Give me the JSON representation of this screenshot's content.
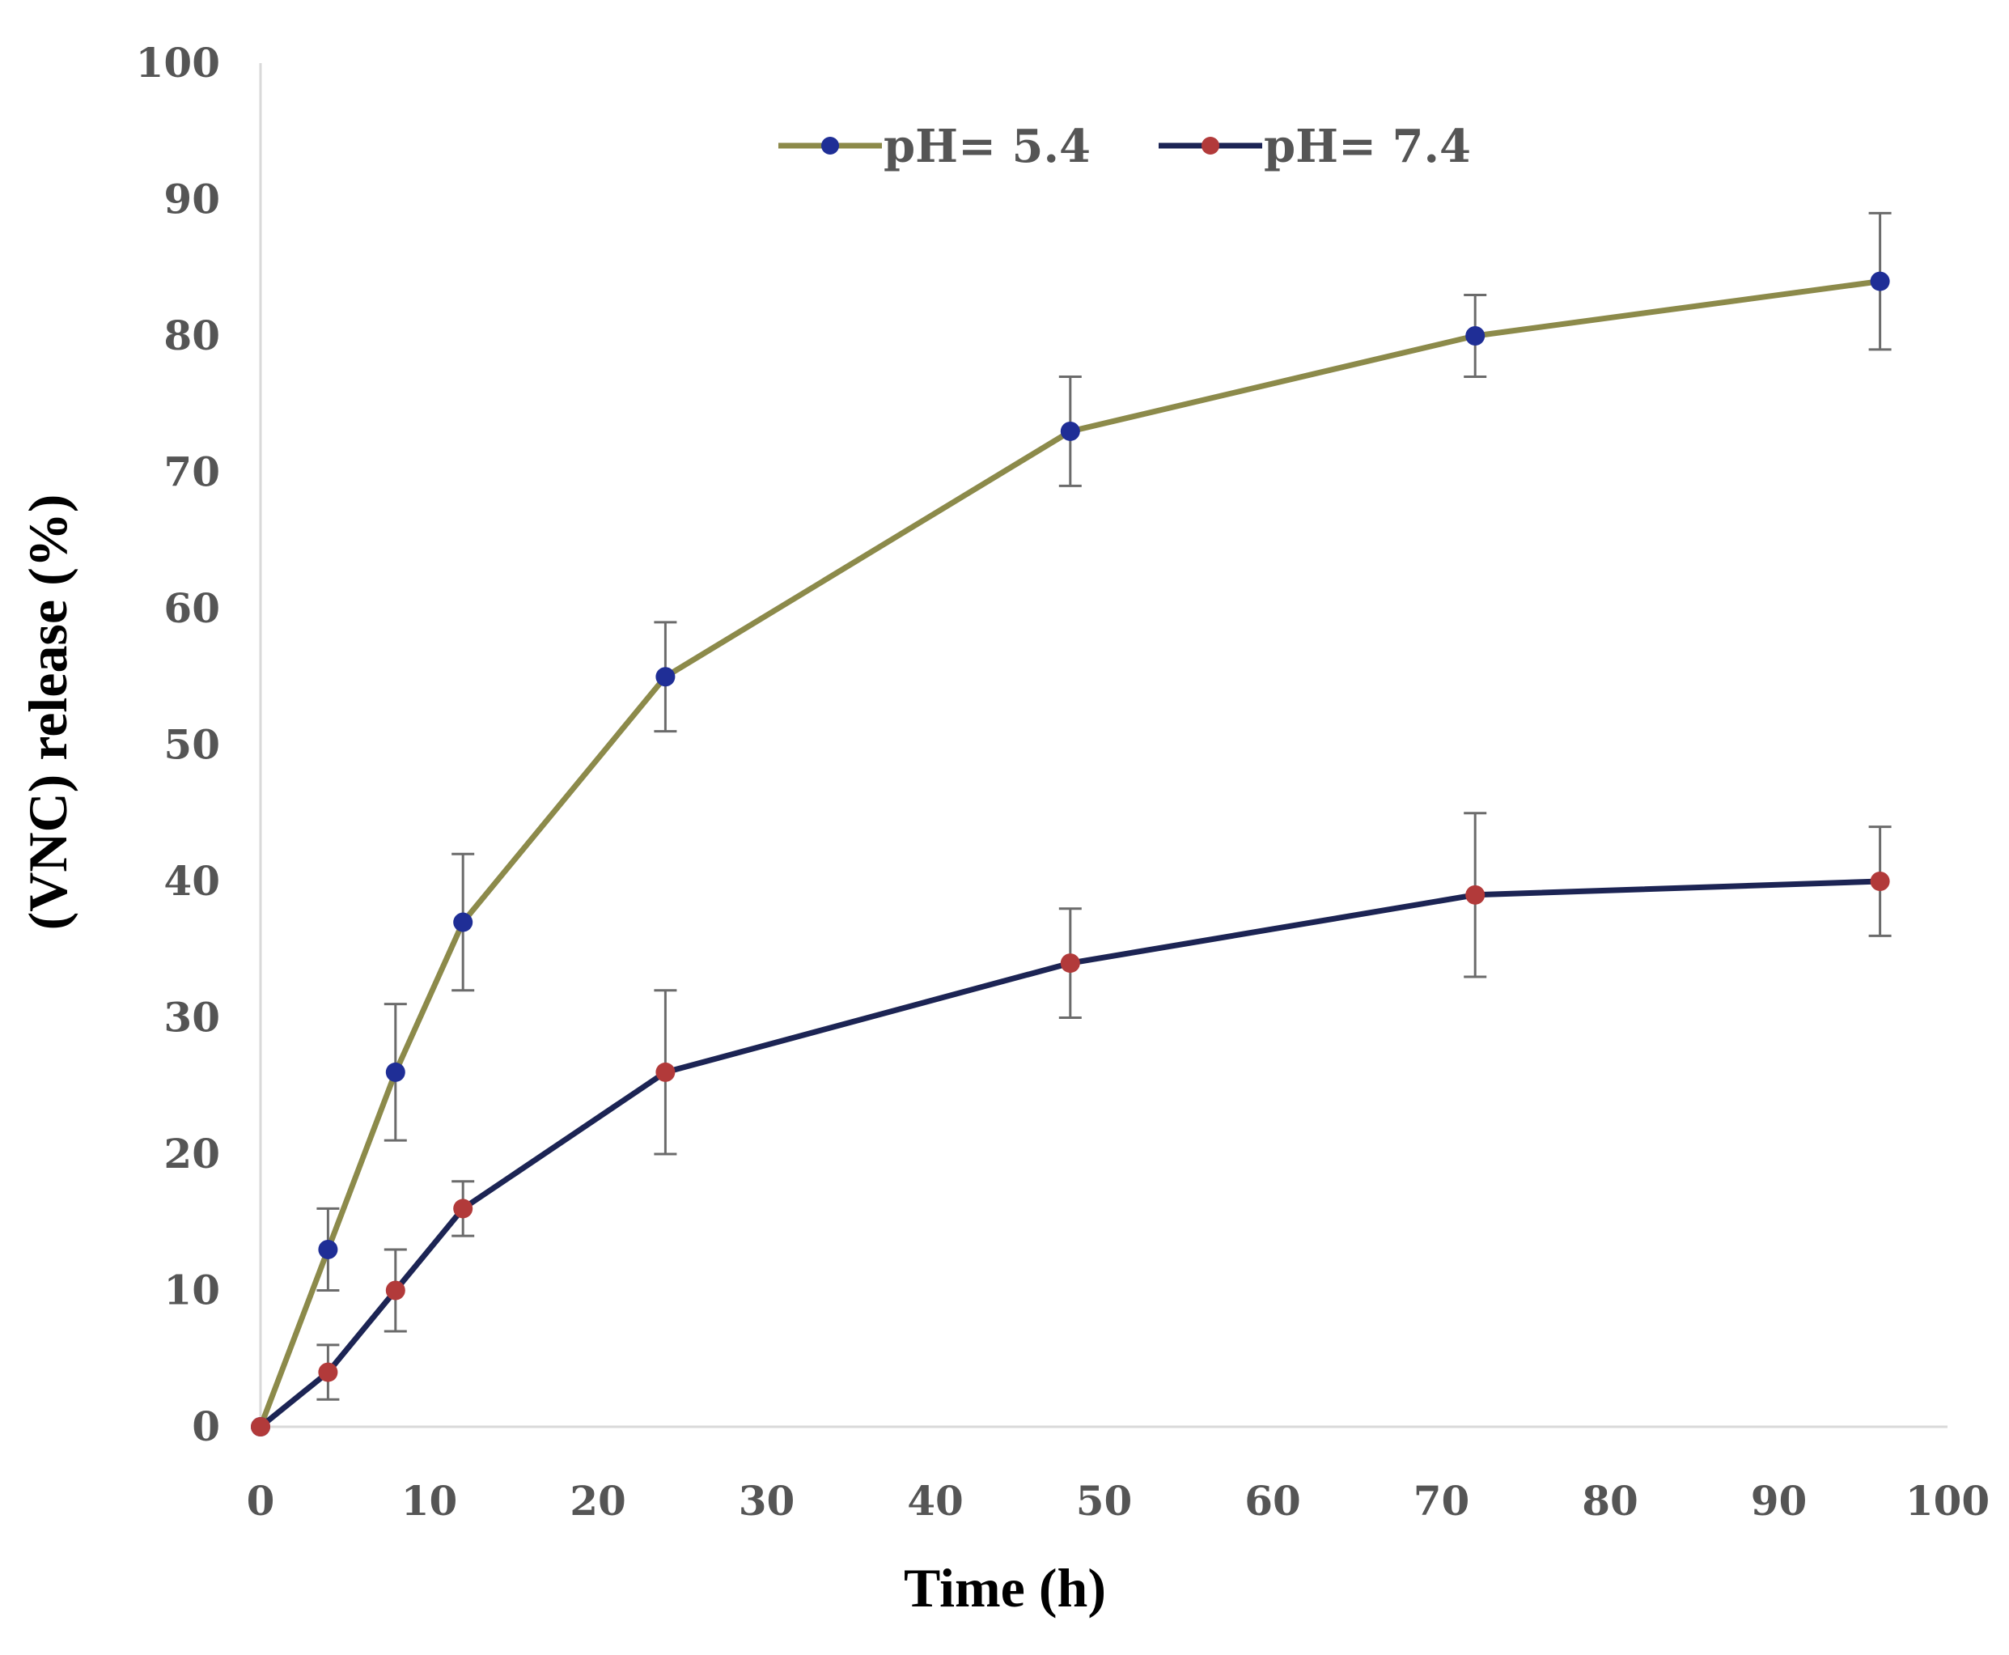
{
  "chart_data": {
    "type": "line",
    "title": "",
    "xlabel": "Time (h)",
    "ylabel": "(VNC) release (%)",
    "xlim": [
      0,
      100
    ],
    "ylim": [
      0,
      100
    ],
    "xticks": [
      "0",
      "10",
      "20",
      "30",
      "40",
      "50",
      "60",
      "70",
      "80",
      "90",
      "100"
    ],
    "yticks": [
      "0",
      "10",
      "20",
      "30",
      "40",
      "50",
      "60",
      "70",
      "80",
      "90",
      "100"
    ],
    "grid": false,
    "legend_position": "top-center",
    "series": [
      {
        "name": "pH= 5.4",
        "line_color": "#8c8a4a",
        "marker_color": "#1f2e96",
        "x": [
          0,
          4,
          8,
          12,
          24,
          48,
          72,
          96
        ],
        "y": [
          0,
          13,
          26,
          37,
          55,
          73,
          80,
          84
        ],
        "error": [
          0,
          3,
          5,
          5,
          4,
          4,
          3,
          5
        ]
      },
      {
        "name": "pH= 7.4",
        "line_color": "#1c2454",
        "marker_color": "#b23a3a",
        "x": [
          0,
          4,
          8,
          12,
          24,
          48,
          72,
          96
        ],
        "y": [
          0,
          4,
          10,
          16,
          26,
          34,
          39,
          40
        ],
        "error": [
          0,
          2,
          3,
          2,
          6,
          4,
          6,
          4
        ]
      }
    ]
  }
}
